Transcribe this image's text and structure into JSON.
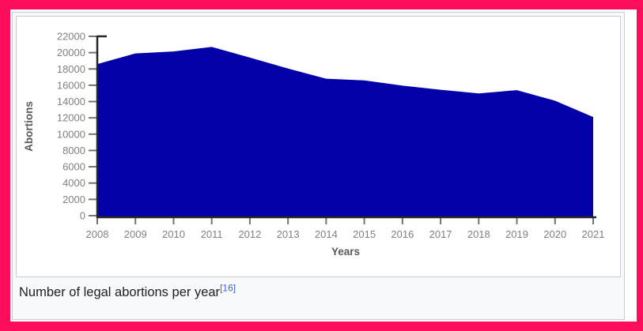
{
  "figure": {
    "caption": "Number of legal abortions per year",
    "reference": "[16]"
  },
  "chart_data": {
    "type": "area",
    "title": "",
    "xlabel": "Years",
    "ylabel": "Abortions",
    "x": [
      2008,
      2009,
      2010,
      2011,
      2012,
      2013,
      2014,
      2015,
      2016,
      2017,
      2018,
      2019,
      2020,
      2021
    ],
    "values": [
      18600,
      19900,
      20150,
      20700,
      19400,
      18050,
      16800,
      16600,
      15950,
      15450,
      15000,
      15400,
      14100,
      12100
    ],
    "ylim": [
      0,
      22000
    ],
    "ytick_step": 2000,
    "yticks": [
      0,
      2000,
      4000,
      6000,
      8000,
      10000,
      12000,
      14000,
      16000,
      18000,
      20000,
      22000
    ],
    "grid": false,
    "legend": "none"
  },
  "colors": {
    "annotation_border": "#fb0d5c",
    "frame_border": "#c8ccd1",
    "frame_bg": "#f8f9fa",
    "area_fill": "#0202a8",
    "axis_line": "#262626",
    "tick_mark": "#737373",
    "tick_label": "#808080",
    "axis_title": "#595959",
    "caption_text": "#202122",
    "ref_link": "#3366cc"
  }
}
